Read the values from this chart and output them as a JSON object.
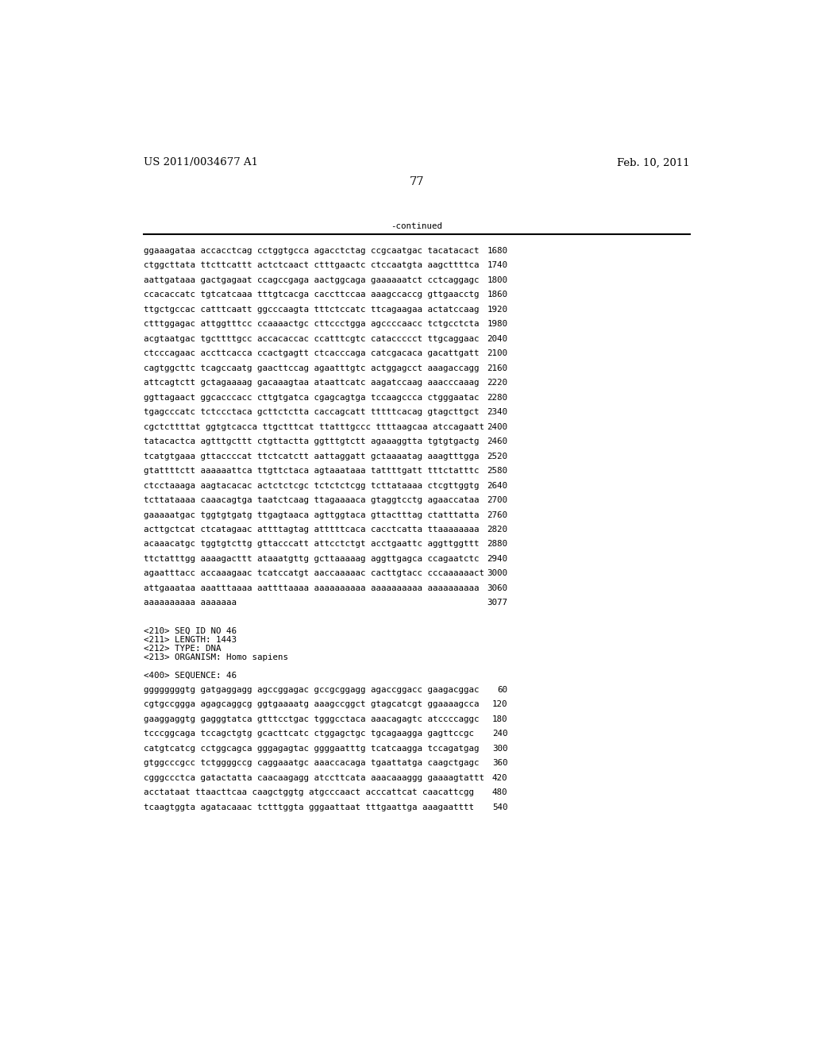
{
  "header_left": "US 2011/0034677 A1",
  "header_right": "Feb. 10, 2011",
  "page_number": "77",
  "continued_label": "-continued",
  "bg_color": "#ffffff",
  "text_color": "#000000",
  "font_size_header": 9.5,
  "font_size_body": 7.8,
  "font_size_page": 10.5,
  "sequence_lines": [
    [
      "ggaaagataa accacctcag cctggtgcca agacctctag ccgcaatgac tacatacact",
      "1680"
    ],
    [
      "ctggcttata ttcttcattt actctcaact ctttgaactc ctccaatgta aagcttttca",
      "1740"
    ],
    [
      "aattgataaa gactgagaat ccagccgaga aactggcaga gaaaaaatct cctcaggagc",
      "1800"
    ],
    [
      "ccacaccatc tgtcatcaaa tttgtcacga caccttccaa aaagccaccg gttgaacctg",
      "1860"
    ],
    [
      "ttgctgccac catttcaatt ggcccaagta tttctccatc ttcagaagaa actatccaag",
      "1920"
    ],
    [
      "ctttggagac attggtttcc ccaaaactgc cttccctgga agccccaacc tctgcctcta",
      "1980"
    ],
    [
      "acgtaatgac tgcttttgcc accacaccac ccatttcgtc cataccccct ttgcaggaac",
      "2040"
    ],
    [
      "ctcccagaac accttcacca ccactgagtt ctcacccaga catcgacaca gacattgatt",
      "2100"
    ],
    [
      "cagtggcttc tcagccaatg gaacttccag agaatttgtc actggagcct aaagaccagg",
      "2160"
    ],
    [
      "attcagtctt gctagaaaag gacaaagtaa ataattcatc aagatccaag aaacccaaag",
      "2220"
    ],
    [
      "ggttagaact ggcacccacc cttgtgatca cgagcagtga tccaagccca ctgggaatac",
      "2280"
    ],
    [
      "tgagcccatc tctccctaca gcttctctta caccagcatt tttttcacag gtagcttgct",
      "2340"
    ],
    [
      "cgctcttttat ggtgtcacca ttgctttcat ttatttgccc ttttaagcaa atccagaatt",
      "2400"
    ],
    [
      "tatacactca agtttgcttt ctgttactta ggtttgtctt agaaaggtta tgtgtgactg",
      "2460"
    ],
    [
      "tcatgtgaaa gttaccccat ttctcatctt aattaggatt gctaaaatag aaagtttgga",
      "2520"
    ],
    [
      "gtattttctt aaaaaattca ttgttctaca agtaaataaa tattttgatt tttctatttc",
      "2580"
    ],
    [
      "ctcctaaaga aagtacacac actctctcgc tctctctcgg tcttataaaa ctcgttggtg",
      "2640"
    ],
    [
      "tcttataaaa caaacagtga taatctcaag ttagaaaaca gtaggtcctg agaaccataa",
      "2700"
    ],
    [
      "gaaaaatgac tggtgtgatg ttgagtaaca agttggtaca gttactttag ctatttatta",
      "2760"
    ],
    [
      "acttgctcat ctcatagaac attttagtag atttttcaca cacctcatta ttaaaaaaaa",
      "2820"
    ],
    [
      "acaaacatgc tggtgtcttg gttacccatt attcctctgt acctgaattc aggttggttt",
      "2880"
    ],
    [
      "ttctatttgg aaaagacttt ataaatgttg gcttaaaaag aggttgagca ccagaatctc",
      "2940"
    ],
    [
      "agaatttacc accaaagaac tcatccatgt aaccaaaaac cacttgtacc cccaaaaaact",
      "3000"
    ],
    [
      "attgaaataa aaatttaaaa aattttaaaa aaaaaaaaaa aaaaaaaaaa aaaaaaaaaa",
      "3060"
    ],
    [
      "aaaaaaaaaa aaaaaaa",
      "3077"
    ]
  ],
  "metadata_lines": [
    "<210> SEQ ID NO 46",
    "<211> LENGTH: 1443",
    "<212> TYPE: DNA",
    "<213> ORGANISM: Homo sapiens"
  ],
  "sequence_label": "<400> SEQUENCE: 46",
  "seq46_lines": [
    [
      "ggggggggtg gatgaggagg agccggagac gccgcggagg agaccggacc gaagacggac",
      "60"
    ],
    [
      "cgtgccggga agagcaggcg ggtgaaaatg aaagccggct gtagcatcgt ggaaaagcca",
      "120"
    ],
    [
      "gaaggaggtg gagggtatca gtttcctgac tgggcctaca aaacagagtc atccccaggc",
      "180"
    ],
    [
      "tcccggcaga tccagctgtg gcacttcatc ctggagctgc tgcagaagga gagttccgc",
      "240"
    ],
    [
      "catgtcatcg cctggcagca gggagagtac ggggaatttg tcatcaagga tccagatgag",
      "300"
    ],
    [
      "gtggcccgcc tctggggccg caggaaatgc aaaccacaga tgaattatga caagctgagc",
      "360"
    ],
    [
      "cgggccctca gatactatta caacaagagg atccttcata aaacaaaggg gaaaagtattt",
      "420"
    ],
    [
      "acctataat ttaacttcaa caagctggtg atgcccaact acccattcat caacattcgg",
      "480"
    ],
    [
      "tcaagtggta agatacaaac tctttggta gggaattaat tttgaattga aaagaatttt",
      "540"
    ]
  ]
}
